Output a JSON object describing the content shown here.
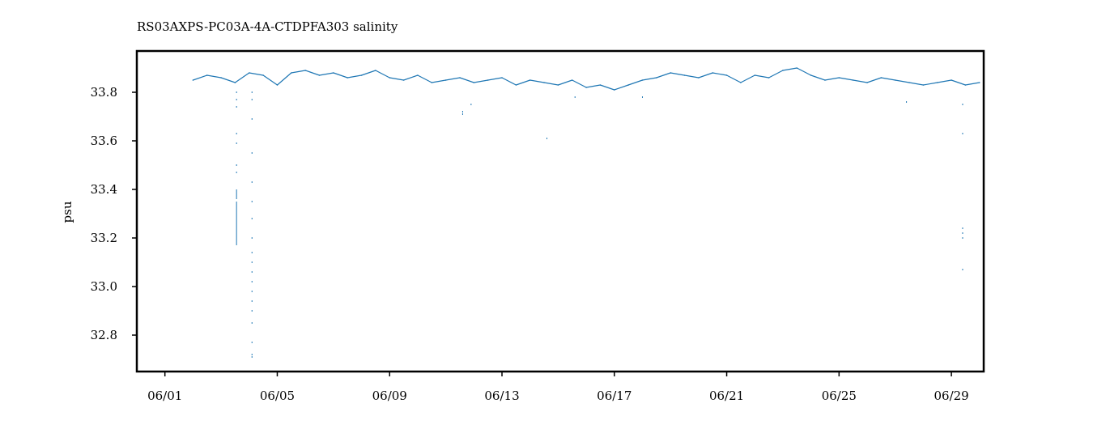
{
  "chart_data": {
    "type": "line",
    "title": "RS03AXPS-PC03A-4A-CTDPFA303 salinity",
    "xlabel": "",
    "ylabel": "psu",
    "x_ticks": [
      "06/01",
      "06/05",
      "06/09",
      "06/13",
      "06/17",
      "06/21",
      "06/25",
      "06/29"
    ],
    "y_ticks": [
      "32.8",
      "33.0",
      "33.2",
      "33.4",
      "33.6",
      "33.8"
    ],
    "xlim_days": [
      31.0,
      61.15
    ],
    "ylim": [
      32.65,
      33.97
    ],
    "grid": false,
    "legend": "none",
    "series_color": "#1f77b4",
    "series": [
      {
        "x_days": [
          33.0,
          33.5,
          34.0,
          34.5,
          35.0,
          35.5,
          36.0,
          36.5,
          37.0,
          37.5,
          38.0,
          38.5,
          39.0,
          39.5,
          40.0,
          40.5,
          41.0,
          41.5,
          42.0,
          42.5,
          43.0,
          43.5,
          44.0,
          44.5,
          45.0,
          45.5,
          46.0,
          46.5,
          47.0,
          47.5,
          48.0,
          48.5,
          49.0,
          49.5,
          50.0,
          50.5,
          51.0,
          51.5,
          52.0,
          52.5,
          53.0,
          53.5,
          54.0,
          54.5,
          55.0,
          55.5,
          56.0,
          56.5,
          57.0,
          57.5,
          58.0,
          58.5,
          59.0,
          59.5,
          60.0,
          60.5,
          61.0
        ],
        "values": [
          33.85,
          33.87,
          33.86,
          33.84,
          33.88,
          33.87,
          33.83,
          33.88,
          33.89,
          33.87,
          33.88,
          33.86,
          33.87,
          33.89,
          33.86,
          33.85,
          33.87,
          33.84,
          33.85,
          33.86,
          33.84,
          33.85,
          33.86,
          33.83,
          33.85,
          33.84,
          33.83,
          33.85,
          33.82,
          33.83,
          33.81,
          33.83,
          33.85,
          33.86,
          33.88,
          33.87,
          33.86,
          33.88,
          33.87,
          33.84,
          33.87,
          33.86,
          33.89,
          33.9,
          33.87,
          33.85,
          33.86,
          33.85,
          33.84,
          33.86,
          33.85,
          33.84,
          33.83,
          33.84,
          33.85,
          33.83,
          33.84
        ]
      }
    ],
    "outlier_points": [
      {
        "x_day": 34.55,
        "y": 33.8
      },
      {
        "x_day": 34.55,
        "y": 33.77
      },
      {
        "x_day": 34.55,
        "y": 33.74
      },
      {
        "x_day": 34.55,
        "y": 33.63
      },
      {
        "x_day": 34.55,
        "y": 33.59
      },
      {
        "x_day": 34.55,
        "y": 33.5
      },
      {
        "x_day": 34.55,
        "y": 33.47
      },
      {
        "x_day": 35.1,
        "y": 33.8
      },
      {
        "x_day": 35.1,
        "y": 33.77
      },
      {
        "x_day": 35.1,
        "y": 33.69
      },
      {
        "x_day": 35.1,
        "y": 33.55
      },
      {
        "x_day": 35.1,
        "y": 33.43
      },
      {
        "x_day": 35.1,
        "y": 33.35
      },
      {
        "x_day": 35.1,
        "y": 33.28
      },
      {
        "x_day": 35.1,
        "y": 33.2
      },
      {
        "x_day": 35.1,
        "y": 33.14
      },
      {
        "x_day": 35.1,
        "y": 33.1
      },
      {
        "x_day": 35.1,
        "y": 33.06
      },
      {
        "x_day": 35.1,
        "y": 33.02
      },
      {
        "x_day": 35.1,
        "y": 32.98
      },
      {
        "x_day": 35.1,
        "y": 32.94
      },
      {
        "x_day": 35.1,
        "y": 32.9
      },
      {
        "x_day": 35.1,
        "y": 32.85
      },
      {
        "x_day": 35.1,
        "y": 32.77
      },
      {
        "x_day": 35.1,
        "y": 32.72
      },
      {
        "x_day": 35.1,
        "y": 32.71
      },
      {
        "x_day": 42.6,
        "y": 33.72
      },
      {
        "x_day": 42.6,
        "y": 33.71
      },
      {
        "x_day": 42.9,
        "y": 33.75
      },
      {
        "x_day": 45.6,
        "y": 33.61
      },
      {
        "x_day": 46.6,
        "y": 33.78
      },
      {
        "x_day": 49.0,
        "y": 33.78
      },
      {
        "x_day": 58.4,
        "y": 33.76
      },
      {
        "x_day": 60.4,
        "y": 33.75
      },
      {
        "x_day": 60.4,
        "y": 33.63
      },
      {
        "x_day": 60.4,
        "y": 33.24
      },
      {
        "x_day": 60.4,
        "y": 33.22
      },
      {
        "x_day": 60.4,
        "y": 33.2
      },
      {
        "x_day": 60.4,
        "y": 33.07
      }
    ],
    "outlier_segments": [
      {
        "x_day": 34.55,
        "y0": 33.36,
        "y1": 33.4
      },
      {
        "x_day": 34.55,
        "y0": 33.17,
        "y1": 33.35
      }
    ]
  }
}
